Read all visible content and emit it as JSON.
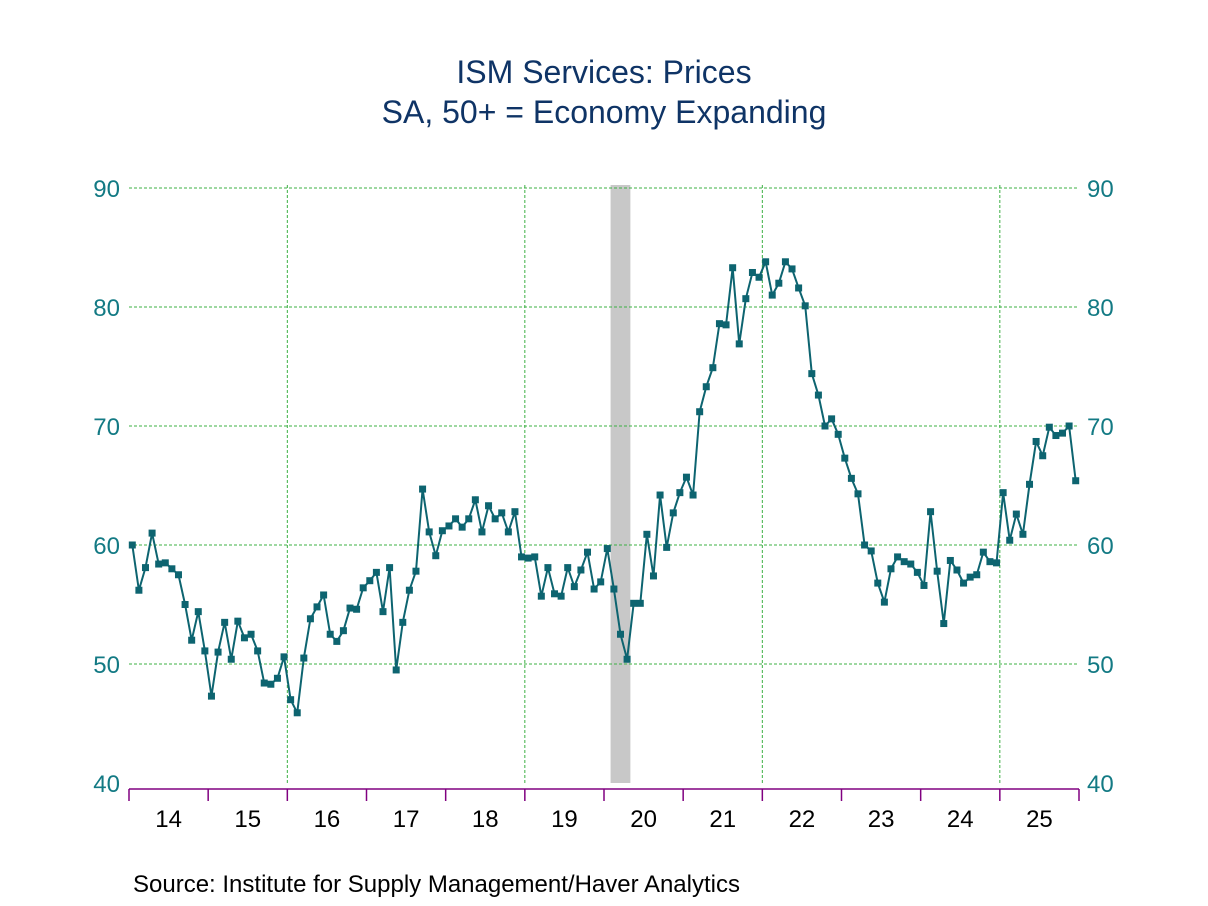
{
  "chart_data": {
    "type": "line",
    "title": "ISM Services: Prices",
    "subtitle": "SA, 50+ = Economy Expanding",
    "source": "Source:  Institute for Supply Management/Haver Analytics",
    "xlabel": "",
    "ylabel": "",
    "ylim": [
      40,
      90
    ],
    "yticks": [
      40,
      50,
      60,
      70,
      80,
      90
    ],
    "ytick_labels_left": [
      "40",
      "50",
      "60",
      "70",
      "80",
      "90"
    ],
    "ytick_labels_right": [
      "40",
      "50",
      "60",
      "70",
      "80",
      "90"
    ],
    "xlim": [
      "2014-01",
      "2025-12"
    ],
    "xtick_labels": [
      "14",
      "15",
      "16",
      "17",
      "18",
      "19",
      "20",
      "21",
      "22",
      "23",
      "24",
      "25"
    ],
    "grid": true,
    "recession_shading": [
      {
        "start": "2020-02",
        "end": "2020-04"
      }
    ],
    "colors": {
      "series": "#0d6470",
      "grid": "#3cb043",
      "axis": "#800080",
      "recession": "#c8c8c8",
      "title": "#0f3466",
      "ytick": "#137a84"
    },
    "series": [
      {
        "name": "ISM Services: Prices",
        "start": "2014-01",
        "frequency": "monthly",
        "values": [
          60.0,
          56.2,
          58.1,
          61.0,
          58.4,
          58.5,
          58.0,
          57.5,
          55.0,
          52.0,
          54.4,
          51.1,
          47.3,
          51.0,
          53.5,
          50.4,
          53.6,
          52.2,
          52.5,
          51.1,
          48.4,
          48.3,
          48.8,
          50.6,
          47.0,
          45.9,
          50.5,
          53.8,
          54.8,
          55.8,
          52.5,
          51.9,
          52.8,
          54.7,
          54.6,
          56.4,
          57.0,
          57.7,
          54.4,
          58.1,
          49.5,
          53.5,
          56.2,
          57.8,
          64.7,
          61.1,
          59.1,
          61.2,
          61.6,
          62.2,
          61.5,
          62.2,
          63.8,
          61.1,
          63.3,
          62.2,
          62.7,
          61.1,
          62.8,
          59.0,
          58.9,
          59.0,
          55.7,
          58.1,
          55.9,
          55.7,
          58.1,
          56.5,
          57.9,
          59.4,
          56.3,
          56.9,
          59.7,
          56.3,
          52.5,
          50.4,
          55.1,
          55.1,
          60.9,
          57.4,
          64.2,
          59.8,
          62.7,
          64.4,
          65.7,
          64.2,
          71.2,
          73.3,
          74.9,
          78.6,
          78.5,
          83.3,
          76.9,
          80.7,
          82.9,
          82.5,
          83.8,
          81.0,
          82.0,
          83.8,
          83.2,
          81.6,
          80.1,
          74.4,
          72.6,
          70.0,
          70.6,
          69.3,
          67.3,
          65.6,
          64.3,
          60.0,
          59.5,
          56.8,
          55.2,
          58.0,
          59.0,
          58.6,
          58.4,
          57.7,
          56.6,
          62.8,
          57.8,
          53.4,
          58.7,
          57.9,
          56.8,
          57.3,
          57.5,
          59.4,
          58.6,
          58.5,
          64.4,
          60.4,
          62.6,
          60.9,
          65.1,
          68.7,
          67.5,
          69.9,
          69.2,
          69.4,
          70.0,
          65.4
        ]
      }
    ]
  }
}
